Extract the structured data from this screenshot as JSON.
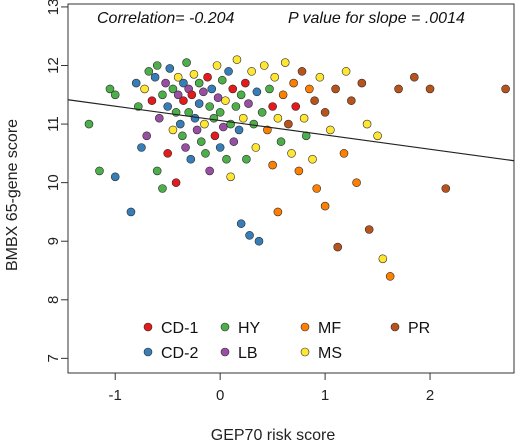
{
  "chart_data": {
    "type": "scatter",
    "title_parts": [
      "Correlation= -0.204",
      "P value for slope = .0014"
    ],
    "xlabel": "GEP70 risk score",
    "ylabel": "BMBX 65-gene score",
    "xlim": [
      -1.45,
      2.8
    ],
    "ylim": [
      6.75,
      13.05
    ],
    "xticks": [
      -1,
      0,
      1,
      2
    ],
    "yticks": [
      7,
      8,
      9,
      10,
      11,
      12,
      13
    ],
    "regression_line": {
      "intercept": 11.06,
      "slope": -0.245
    },
    "legend": [
      {
        "label": "CD-1",
        "color": "#e41a1c"
      },
      {
        "label": "HY",
        "color": "#4daf4a"
      },
      {
        "label": "MF",
        "color": "#ff7f00"
      },
      {
        "label": "PR",
        "color": "#b8541b"
      },
      {
        "label": "CD-2",
        "color": "#377eb8"
      },
      {
        "label": "LB",
        "color": "#984ea3"
      },
      {
        "label": "MS",
        "color": "#ffe633"
      }
    ],
    "points": [
      {
        "x": -1.25,
        "y": 11.0,
        "g": "HY"
      },
      {
        "x": -1.15,
        "y": 10.2,
        "g": "HY"
      },
      {
        "x": -1.05,
        "y": 11.6,
        "g": "HY"
      },
      {
        "x": -1.0,
        "y": 11.5,
        "g": "HY"
      },
      {
        "x": -1.0,
        "y": 10.1,
        "g": "CD-2"
      },
      {
        "x": -0.85,
        "y": 9.5,
        "g": "CD-2"
      },
      {
        "x": -0.8,
        "y": 11.7,
        "g": "CD-2"
      },
      {
        "x": -0.78,
        "y": 11.3,
        "g": "HY"
      },
      {
        "x": -0.75,
        "y": 10.6,
        "g": "CD-2"
      },
      {
        "x": -0.72,
        "y": 11.6,
        "g": "MS"
      },
      {
        "x": -0.7,
        "y": 10.8,
        "g": "LB"
      },
      {
        "x": -0.68,
        "y": 11.9,
        "g": "HY"
      },
      {
        "x": -0.65,
        "y": 11.4,
        "g": "CD-1"
      },
      {
        "x": -0.62,
        "y": 11.8,
        "g": "CD-2"
      },
      {
        "x": -0.6,
        "y": 12.0,
        "g": "HY"
      },
      {
        "x": -0.6,
        "y": 10.2,
        "g": "HY"
      },
      {
        "x": -0.58,
        "y": 11.1,
        "g": "LB"
      },
      {
        "x": -0.55,
        "y": 11.5,
        "g": "HY"
      },
      {
        "x": -0.55,
        "y": 9.9,
        "g": "HY"
      },
      {
        "x": -0.52,
        "y": 11.7,
        "g": "LB"
      },
      {
        "x": -0.5,
        "y": 11.3,
        "g": "CD-2"
      },
      {
        "x": -0.5,
        "y": 10.5,
        "g": "CD-1"
      },
      {
        "x": -0.48,
        "y": 11.95,
        "g": "CD-2"
      },
      {
        "x": -0.45,
        "y": 11.6,
        "g": "HY"
      },
      {
        "x": -0.45,
        "y": 10.9,
        "g": "MS"
      },
      {
        "x": -0.42,
        "y": 11.2,
        "g": "HY"
      },
      {
        "x": -0.42,
        "y": 10.0,
        "g": "CD-1"
      },
      {
        "x": -0.4,
        "y": 11.8,
        "g": "MS"
      },
      {
        "x": -0.4,
        "y": 11.5,
        "g": "LB"
      },
      {
        "x": -0.38,
        "y": 11.0,
        "g": "CD-2"
      },
      {
        "x": -0.36,
        "y": 10.8,
        "g": "HY"
      },
      {
        "x": -0.35,
        "y": 11.7,
        "g": "CD-2"
      },
      {
        "x": -0.35,
        "y": 11.4,
        "g": "CD-1"
      },
      {
        "x": -0.33,
        "y": 10.6,
        "g": "LB"
      },
      {
        "x": -0.32,
        "y": 12.05,
        "g": "HY"
      },
      {
        "x": -0.3,
        "y": 11.6,
        "g": "LB"
      },
      {
        "x": -0.3,
        "y": 11.2,
        "g": "HY"
      },
      {
        "x": -0.28,
        "y": 10.4,
        "g": "CD-2"
      },
      {
        "x": -0.27,
        "y": 11.5,
        "g": "CD-1"
      },
      {
        "x": -0.25,
        "y": 11.85,
        "g": "MS"
      },
      {
        "x": -0.24,
        "y": 11.1,
        "g": "CD-2"
      },
      {
        "x": -0.22,
        "y": 10.9,
        "g": "LB"
      },
      {
        "x": -0.2,
        "y": 11.7,
        "g": "HY"
      },
      {
        "x": -0.2,
        "y": 11.35,
        "g": "CD-2"
      },
      {
        "x": -0.18,
        "y": 10.7,
        "g": "HY"
      },
      {
        "x": -0.16,
        "y": 11.55,
        "g": "LB"
      },
      {
        "x": -0.15,
        "y": 11.0,
        "g": "MS"
      },
      {
        "x": -0.14,
        "y": 10.5,
        "g": "HY"
      },
      {
        "x": -0.12,
        "y": 11.8,
        "g": "CD-1"
      },
      {
        "x": -0.1,
        "y": 11.3,
        "g": "HY"
      },
      {
        "x": -0.1,
        "y": 10.2,
        "g": "LB"
      },
      {
        "x": -0.08,
        "y": 11.6,
        "g": "CD-2"
      },
      {
        "x": -0.06,
        "y": 11.1,
        "g": "HY"
      },
      {
        "x": -0.05,
        "y": 10.8,
        "g": "CD-1"
      },
      {
        "x": -0.03,
        "y": 12.0,
        "g": "MS"
      },
      {
        "x": -0.02,
        "y": 11.45,
        "g": "LB"
      },
      {
        "x": 0.0,
        "y": 11.2,
        "g": "HY"
      },
      {
        "x": 0.0,
        "y": 10.6,
        "g": "CD-2"
      },
      {
        "x": 0.02,
        "y": 11.75,
        "g": "HY"
      },
      {
        "x": 0.03,
        "y": 10.95,
        "g": "LB"
      },
      {
        "x": 0.05,
        "y": 11.4,
        "g": "MS"
      },
      {
        "x": 0.06,
        "y": 10.4,
        "g": "HY"
      },
      {
        "x": 0.08,
        "y": 11.9,
        "g": "CD-2"
      },
      {
        "x": 0.1,
        "y": 11.0,
        "g": "HY"
      },
      {
        "x": 0.1,
        "y": 10.1,
        "g": "MS"
      },
      {
        "x": 0.12,
        "y": 11.6,
        "g": "CD-1"
      },
      {
        "x": 0.13,
        "y": 10.7,
        "g": "LB"
      },
      {
        "x": 0.15,
        "y": 11.3,
        "g": "HY"
      },
      {
        "x": 0.16,
        "y": 12.1,
        "g": "MS"
      },
      {
        "x": 0.18,
        "y": 10.9,
        "g": "CD-2"
      },
      {
        "x": 0.2,
        "y": 11.5,
        "g": "HY"
      },
      {
        "x": 0.2,
        "y": 9.3,
        "g": "CD-2"
      },
      {
        "x": 0.22,
        "y": 11.1,
        "g": "MS"
      },
      {
        "x": 0.24,
        "y": 11.7,
        "g": "CD-1"
      },
      {
        "x": 0.25,
        "y": 10.4,
        "g": "HY"
      },
      {
        "x": 0.27,
        "y": 11.35,
        "g": "LB"
      },
      {
        "x": 0.28,
        "y": 9.1,
        "g": "CD-2"
      },
      {
        "x": 0.3,
        "y": 11.9,
        "g": "MS"
      },
      {
        "x": 0.32,
        "y": 11.0,
        "g": "HY"
      },
      {
        "x": 0.34,
        "y": 10.6,
        "g": "MS"
      },
      {
        "x": 0.35,
        "y": 11.55,
        "g": "CD-2"
      },
      {
        "x": 0.37,
        "y": 9.0,
        "g": "CD-2"
      },
      {
        "x": 0.4,
        "y": 11.2,
        "g": "HY"
      },
      {
        "x": 0.42,
        "y": 12.0,
        "g": "MS"
      },
      {
        "x": 0.45,
        "y": 10.9,
        "g": "MF"
      },
      {
        "x": 0.47,
        "y": 11.6,
        "g": "HY"
      },
      {
        "x": 0.5,
        "y": 11.3,
        "g": "CD-1"
      },
      {
        "x": 0.5,
        "y": 10.3,
        "g": "MF"
      },
      {
        "x": 0.52,
        "y": 11.8,
        "g": "MS"
      },
      {
        "x": 0.55,
        "y": 11.1,
        "g": "MS"
      },
      {
        "x": 0.55,
        "y": 9.5,
        "g": "MF"
      },
      {
        "x": 0.58,
        "y": 10.7,
        "g": "HY"
      },
      {
        "x": 0.6,
        "y": 11.5,
        "g": "MF"
      },
      {
        "x": 0.62,
        "y": 12.05,
        "g": "MS"
      },
      {
        "x": 0.65,
        "y": 11.0,
        "g": "PR"
      },
      {
        "x": 0.68,
        "y": 10.5,
        "g": "MS"
      },
      {
        "x": 0.7,
        "y": 11.7,
        "g": "MF"
      },
      {
        "x": 0.72,
        "y": 11.3,
        "g": "CD-1"
      },
      {
        "x": 0.75,
        "y": 10.2,
        "g": "MF"
      },
      {
        "x": 0.78,
        "y": 11.9,
        "g": "PR"
      },
      {
        "x": 0.8,
        "y": 11.1,
        "g": "MS"
      },
      {
        "x": 0.82,
        "y": 10.8,
        "g": "HY"
      },
      {
        "x": 0.85,
        "y": 11.6,
        "g": "MF"
      },
      {
        "x": 0.88,
        "y": 10.4,
        "g": "MS"
      },
      {
        "x": 0.9,
        "y": 11.4,
        "g": "PR"
      },
      {
        "x": 0.92,
        "y": 9.9,
        "g": "MF"
      },
      {
        "x": 0.95,
        "y": 11.8,
        "g": "MS"
      },
      {
        "x": 1.0,
        "y": 11.2,
        "g": "PR"
      },
      {
        "x": 1.0,
        "y": 9.6,
        "g": "MF"
      },
      {
        "x": 1.05,
        "y": 10.9,
        "g": "MS"
      },
      {
        "x": 1.1,
        "y": 11.6,
        "g": "PR"
      },
      {
        "x": 1.12,
        "y": 8.9,
        "g": "PR"
      },
      {
        "x": 1.18,
        "y": 10.5,
        "g": "MF"
      },
      {
        "x": 1.2,
        "y": 11.9,
        "g": "MS"
      },
      {
        "x": 1.25,
        "y": 11.4,
        "g": "PR"
      },
      {
        "x": 1.3,
        "y": 10.0,
        "g": "MF"
      },
      {
        "x": 1.35,
        "y": 11.7,
        "g": "PR"
      },
      {
        "x": 1.4,
        "y": 11.0,
        "g": "MS"
      },
      {
        "x": 1.42,
        "y": 9.2,
        "g": "PR"
      },
      {
        "x": 1.5,
        "y": 10.8,
        "g": "MS"
      },
      {
        "x": 1.55,
        "y": 8.7,
        "g": "MS"
      },
      {
        "x": 1.62,
        "y": 8.4,
        "g": "MF"
      },
      {
        "x": 1.7,
        "y": 11.6,
        "g": "PR"
      },
      {
        "x": 1.85,
        "y": 11.8,
        "g": "PR"
      },
      {
        "x": 2.0,
        "y": 11.6,
        "g": "PR"
      },
      {
        "x": 2.15,
        "y": 9.9,
        "g": "PR"
      },
      {
        "x": 2.72,
        "y": 11.6,
        "g": "PR"
      }
    ]
  }
}
